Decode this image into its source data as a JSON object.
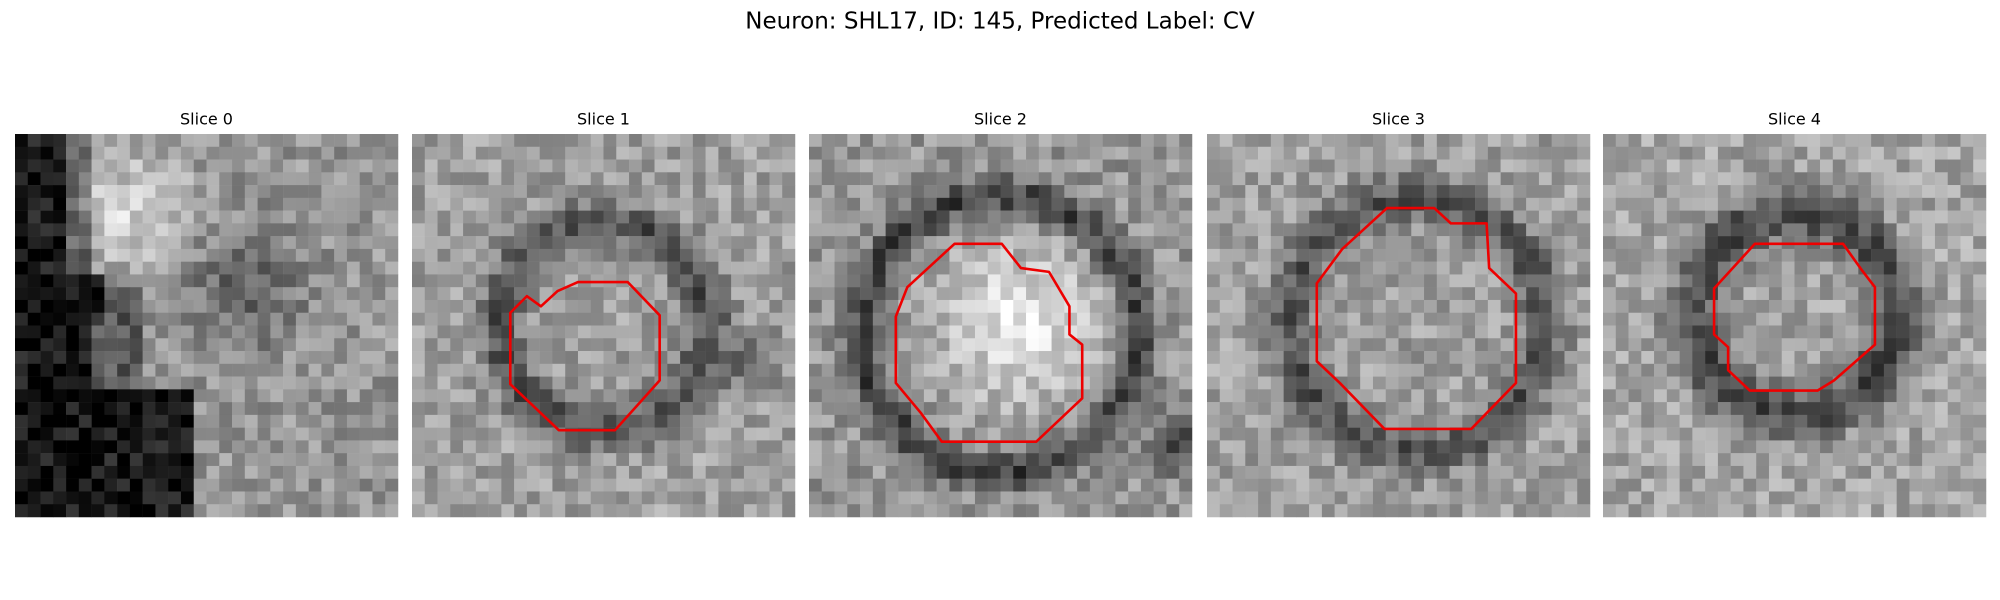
{
  "title": "Neuron: SHL17, ID: 145, Predicted Label: CV",
  "panels": [
    {
      "title": "Slice 0"
    },
    {
      "title": "Slice 1"
    },
    {
      "title": "Slice 2"
    },
    {
      "title": "Slice 3"
    },
    {
      "title": "Slice 4"
    }
  ]
}
